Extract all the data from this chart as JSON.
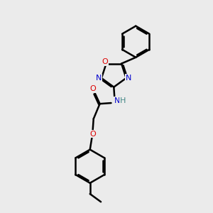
{
  "background_color": "#ebebeb",
  "atom_colors": {
    "C": "#000000",
    "N": "#0000cc",
    "O": "#dd0000",
    "H": "#448888"
  },
  "bond_color": "#000000",
  "bond_width": 1.8,
  "dbo": 0.055,
  "figsize": [
    3.0,
    3.0
  ],
  "dpi": 100
}
